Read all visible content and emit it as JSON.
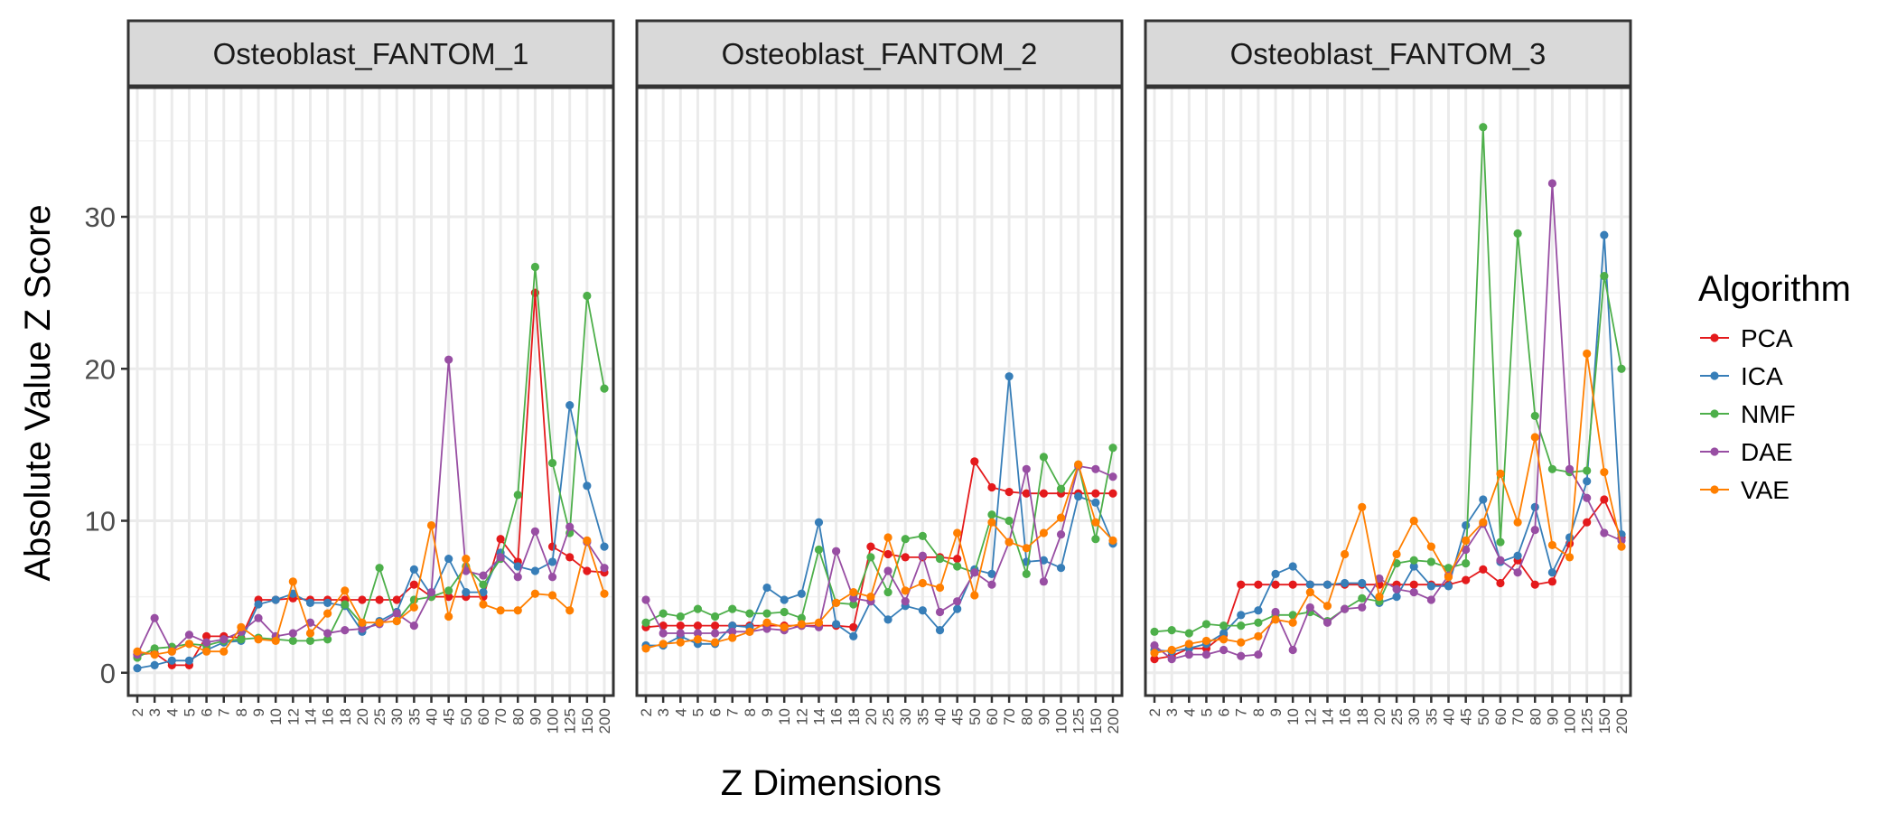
{
  "chart_data": {
    "type": "line",
    "facet": "panels",
    "ylabel": "Absolute Value Z Score",
    "xlabel": "Z Dimensions",
    "ylim": [
      -1.5,
      38.5
    ],
    "yticks": [
      0,
      10,
      20,
      30
    ],
    "grid": true,
    "legend_position": "right",
    "legend_title": "Algorithm",
    "categories": [
      "2",
      "3",
      "4",
      "5",
      "6",
      "7",
      "8",
      "9",
      "10",
      "12",
      "14",
      "16",
      "18",
      "20",
      "25",
      "30",
      "35",
      "40",
      "45",
      "50",
      "60",
      "70",
      "80",
      "90",
      "100",
      "125",
      "150",
      "200"
    ],
    "colors": {
      "PCA": "#E41A1C",
      "ICA": "#377EB8",
      "NMF": "#4DAF4A",
      "DAE": "#984EA3",
      "VAE": "#FF7F00"
    },
    "panels": [
      {
        "title": "Osteoblast_FANTOM_1",
        "series": [
          {
            "name": "PCA",
            "values": [
              1.2,
              1.3,
              0.5,
              0.5,
              2.4,
              2.4,
              2.3,
              4.8,
              4.8,
              4.9,
              4.8,
              4.8,
              4.8,
              4.8,
              4.8,
              4.8,
              5.8,
              5.0,
              5.0,
              5.0,
              5.0,
              8.8,
              7.3,
              25.0,
              8.3,
              7.6,
              6.7,
              6.6
            ]
          },
          {
            "name": "ICA",
            "values": [
              0.3,
              0.5,
              0.8,
              0.8,
              1.5,
              2.0,
              2.1,
              4.5,
              4.8,
              5.2,
              4.6,
              4.6,
              4.4,
              2.7,
              3.4,
              4.0,
              6.8,
              5.1,
              7.5,
              5.3,
              5.3,
              7.9,
              7.0,
              6.7,
              7.3,
              17.6,
              12.3,
              8.3
            ]
          },
          {
            "name": "NMF",
            "values": [
              1.0,
              1.6,
              1.7,
              1.9,
              1.8,
              2.1,
              2.2,
              2.3,
              2.2,
              2.1,
              2.1,
              2.2,
              4.5,
              3.2,
              6.9,
              3.4,
              4.8,
              5.0,
              5.4,
              7.0,
              5.8,
              7.5,
              11.7,
              26.7,
              13.8,
              9.2,
              24.8,
              18.7
            ]
          },
          {
            "name": "DAE",
            "values": [
              1.2,
              3.6,
              1.4,
              2.5,
              2.0,
              2.2,
              2.7,
              3.6,
              2.4,
              2.6,
              3.3,
              2.6,
              2.8,
              2.9,
              3.2,
              3.9,
              3.1,
              5.3,
              20.6,
              6.7,
              6.4,
              7.6,
              6.3,
              9.3,
              6.3,
              9.6,
              8.6,
              6.9
            ]
          },
          {
            "name": "VAE",
            "values": [
              1.4,
              1.2,
              1.4,
              1.9,
              1.4,
              1.4,
              3.0,
              2.2,
              2.1,
              6.0,
              2.6,
              3.9,
              5.4,
              3.3,
              3.3,
              3.4,
              4.3,
              9.7,
              3.7,
              7.5,
              4.5,
              4.1,
              4.1,
              5.2,
              5.1,
              4.1,
              8.7,
              5.2
            ]
          }
        ]
      },
      {
        "title": "Osteoblast_FANTOM_2",
        "series": [
          {
            "name": "PCA",
            "values": [
              3.0,
              3.1,
              3.1,
              3.1,
              3.1,
              3.1,
              3.1,
              3.1,
              3.1,
              3.1,
              3.1,
              3.1,
              3.0,
              8.3,
              7.8,
              7.6,
              7.6,
              7.6,
              7.5,
              13.9,
              12.2,
              11.9,
              11.8,
              11.8,
              11.8,
              11.8,
              11.8,
              11.8
            ]
          },
          {
            "name": "ICA",
            "values": [
              1.8,
              1.8,
              2.4,
              1.9,
              1.9,
              3.1,
              3.0,
              5.6,
              4.8,
              5.2,
              9.9,
              3.2,
              2.4,
              4.7,
              3.5,
              4.4,
              4.1,
              2.8,
              4.2,
              6.8,
              6.5,
              19.5,
              7.3,
              7.4,
              6.9,
              11.6,
              11.2,
              8.5
            ]
          },
          {
            "name": "NMF",
            "values": [
              3.3,
              3.9,
              3.7,
              4.2,
              3.7,
              4.2,
              3.9,
              3.9,
              4.0,
              3.6,
              8.1,
              4.6,
              4.5,
              7.6,
              5.3,
              8.8,
              9.0,
              7.5,
              7.0,
              6.6,
              10.4,
              10.0,
              6.5,
              14.2,
              12.1,
              13.7,
              8.8,
              14.8
            ]
          },
          {
            "name": "DAE",
            "values": [
              4.8,
              2.6,
              2.6,
              2.6,
              2.6,
              2.7,
              2.7,
              2.9,
              2.8,
              3.1,
              3.0,
              8.0,
              4.9,
              4.7,
              6.7,
              4.7,
              7.7,
              4.0,
              4.7,
              6.6,
              5.8,
              8.6,
              13.4,
              6.0,
              9.1,
              13.6,
              13.4,
              12.9
            ]
          },
          {
            "name": "VAE",
            "values": [
              1.6,
              1.9,
              2.0,
              2.2,
              2.0,
              2.3,
              2.7,
              3.3,
              3.0,
              3.2,
              3.3,
              4.6,
              5.3,
              5.0,
              8.9,
              5.4,
              5.9,
              5.6,
              9.2,
              5.1,
              9.9,
              8.6,
              8.2,
              9.2,
              10.2,
              13.7,
              9.9,
              8.7
            ]
          }
        ]
      },
      {
        "title": "Osteoblast_FANTOM_3",
        "series": [
          {
            "name": "PCA",
            "values": [
              0.9,
              1.1,
              1.6,
              1.6,
              2.5,
              5.8,
              5.8,
              5.8,
              5.8,
              5.8,
              5.8,
              5.8,
              5.8,
              5.8,
              5.8,
              5.8,
              5.8,
              5.8,
              6.1,
              6.8,
              5.9,
              7.4,
              5.8,
              6.0,
              8.5,
              9.9,
              11.4,
              8.9
            ]
          },
          {
            "name": "ICA",
            "values": [
              1.5,
              1.4,
              1.6,
              1.9,
              2.6,
              3.8,
              4.1,
              6.5,
              7.0,
              5.8,
              5.8,
              5.9,
              5.9,
              4.6,
              5.0,
              7.0,
              5.7,
              5.7,
              9.7,
              11.4,
              7.3,
              7.7,
              10.9,
              6.6,
              8.9,
              12.6,
              28.8,
              9.1
            ]
          },
          {
            "name": "NMF",
            "values": [
              2.7,
              2.8,
              2.6,
              3.2,
              3.1,
              3.1,
              3.3,
              3.8,
              3.8,
              4.0,
              3.4,
              4.2,
              4.9,
              4.7,
              7.2,
              7.4,
              7.3,
              6.9,
              7.2,
              35.9,
              8.6,
              28.9,
              16.9,
              13.4,
              13.2,
              13.3,
              26.1,
              20.0
            ]
          },
          {
            "name": "DAE",
            "values": [
              1.8,
              0.9,
              1.2,
              1.2,
              1.5,
              1.1,
              1.2,
              4.0,
              1.5,
              4.3,
              3.3,
              4.2,
              4.3,
              6.2,
              5.5,
              5.3,
              4.8,
              6.4,
              8.1,
              9.8,
              7.4,
              6.6,
              9.4,
              32.2,
              13.4,
              11.5,
              9.2,
              8.7
            ]
          },
          {
            "name": "VAE",
            "values": [
              1.3,
              1.5,
              1.9,
              2.1,
              2.2,
              2.0,
              2.4,
              3.5,
              3.3,
              5.3,
              4.4,
              7.8,
              10.9,
              5.0,
              7.8,
              10.0,
              8.3,
              6.3,
              8.7,
              9.9,
              13.1,
              9.9,
              15.5,
              8.4,
              7.6,
              21.0,
              13.2,
              8.3
            ]
          }
        ]
      }
    ]
  }
}
